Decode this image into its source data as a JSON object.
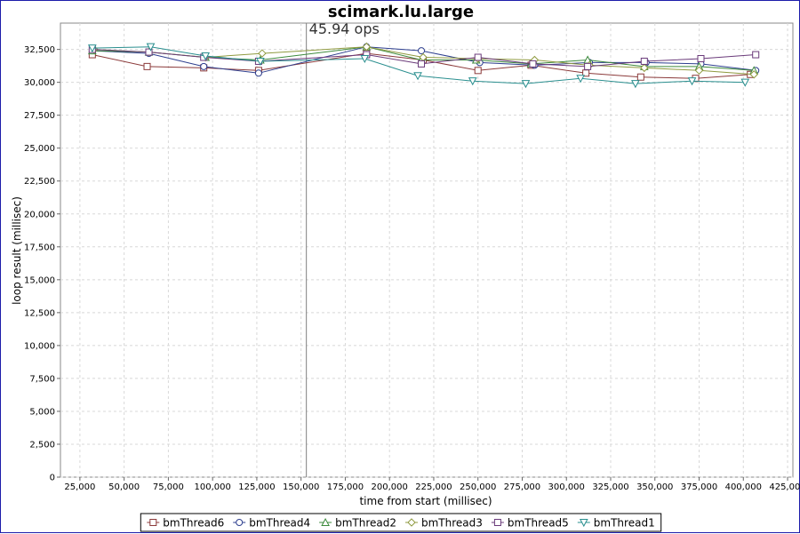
{
  "chart_data": {
    "type": "line",
    "title": "scimark.lu.large",
    "annotation": "45.94 ops",
    "annotation_x": 153000,
    "xlabel": "time from start (millisec)",
    "ylabel": "loop result (millisec)",
    "xlim": [
      14000,
      428000
    ],
    "ylim": [
      0,
      34500
    ],
    "x_ticks": [
      25000,
      50000,
      75000,
      100000,
      125000,
      150000,
      175000,
      200000,
      225000,
      250000,
      275000,
      300000,
      325000,
      350000,
      375000,
      400000,
      425000
    ],
    "x_tick_labels": [
      "25,000",
      "50,000",
      "75,000",
      "100,000",
      "125,000",
      "150,000",
      "175,000",
      "200,000",
      "225,000",
      "250,000",
      "275,000",
      "300,000",
      "325,000",
      "350,000",
      "375,000",
      "400,000",
      "425,000"
    ],
    "y_ticks": [
      0,
      2500,
      5000,
      7500,
      10000,
      12500,
      15000,
      17500,
      20000,
      22500,
      25000,
      27500,
      30000,
      32500
    ],
    "y_tick_labels": [
      "0",
      "2,500",
      "5,000",
      "7,500",
      "10,000",
      "12,500",
      "15,000",
      "17,500",
      "20,000",
      "22,500",
      "25,000",
      "27,500",
      "30,000",
      "32,500"
    ],
    "grid": true,
    "legend_position": "bottom",
    "series": [
      {
        "name": "bmThread6",
        "color": "#8b3a3a",
        "marker": "square",
        "points": [
          [
            32000,
            32100
          ],
          [
            63000,
            31200
          ],
          [
            95000,
            31100
          ],
          [
            126000,
            30900
          ],
          [
            187000,
            32200
          ],
          [
            219000,
            31700
          ],
          [
            250000,
            30900
          ],
          [
            280000,
            31300
          ],
          [
            311000,
            30700
          ],
          [
            342000,
            30400
          ],
          [
            373000,
            30300
          ],
          [
            404000,
            30600
          ]
        ]
      },
      {
        "name": "bmThread4",
        "color": "#2e3f8f",
        "marker": "circle",
        "points": [
          [
            32000,
            32400
          ],
          [
            64000,
            32200
          ],
          [
            95000,
            31200
          ],
          [
            126000,
            30700
          ],
          [
            187000,
            32700
          ],
          [
            218000,
            32400
          ],
          [
            251000,
            31500
          ],
          [
            282000,
            31300
          ],
          [
            313000,
            31500
          ],
          [
            345000,
            31500
          ],
          [
            376000,
            31400
          ],
          [
            407000,
            30900
          ]
        ]
      },
      {
        "name": "bmThread2",
        "color": "#3c8a3c",
        "marker": "triangle-up",
        "points": [
          [
            32000,
            32400
          ],
          [
            64000,
            32300
          ],
          [
            96000,
            31900
          ],
          [
            127000,
            31700
          ],
          [
            187000,
            32700
          ],
          [
            218000,
            31700
          ],
          [
            249000,
            31700
          ],
          [
            280000,
            31400
          ],
          [
            312000,
            31700
          ],
          [
            344000,
            31200
          ],
          [
            375000,
            31200
          ],
          [
            406000,
            30900
          ]
        ]
      },
      {
        "name": "bmThread3",
        "color": "#8f9a3f",
        "marker": "diamond",
        "points": [
          [
            33000,
            32500
          ],
          [
            64000,
            32300
          ],
          [
            96000,
            31900
          ],
          [
            128000,
            32200
          ],
          [
            187000,
            32700
          ],
          [
            219000,
            31900
          ],
          [
            250000,
            31800
          ],
          [
            282000,
            31700
          ],
          [
            313000,
            31300
          ],
          [
            344000,
            31100
          ],
          [
            375000,
            30900
          ],
          [
            406000,
            30600
          ]
        ]
      },
      {
        "name": "bmThread5",
        "color": "#6a3a7a",
        "marker": "square",
        "points": [
          [
            32000,
            32500
          ],
          [
            64000,
            32300
          ],
          [
            95000,
            31900
          ],
          [
            126000,
            31600
          ],
          [
            187000,
            32100
          ],
          [
            218000,
            31400
          ],
          [
            250000,
            31900
          ],
          [
            281000,
            31400
          ],
          [
            312000,
            31200
          ],
          [
            344000,
            31600
          ],
          [
            376000,
            31800
          ],
          [
            407000,
            32100
          ]
        ]
      },
      {
        "name": "bmThread1",
        "color": "#2a8f8f",
        "marker": "triangle-down",
        "points": [
          [
            32000,
            32600
          ],
          [
            65000,
            32700
          ],
          [
            96000,
            32000
          ],
          [
            127000,
            31600
          ],
          [
            186000,
            31800
          ],
          [
            216000,
            30500
          ],
          [
            247000,
            30100
          ],
          [
            277000,
            29900
          ],
          [
            308000,
            30300
          ],
          [
            339000,
            29900
          ],
          [
            371000,
            30100
          ],
          [
            401000,
            30000
          ]
        ]
      }
    ]
  }
}
